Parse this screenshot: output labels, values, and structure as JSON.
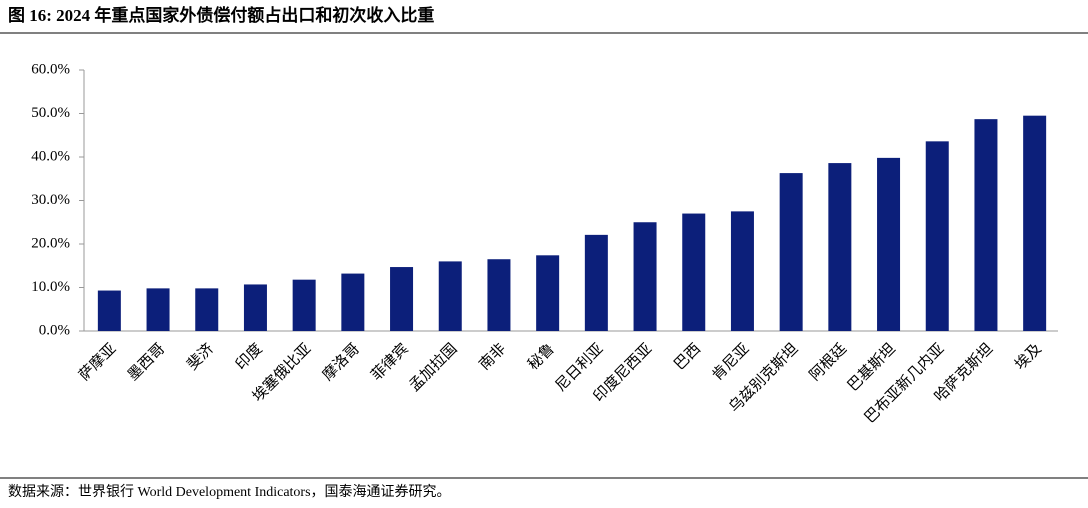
{
  "chart_data": {
    "type": "bar",
    "title": "图 16:  2024 年重点国家外债偿付额占出口和初次收入比重",
    "source": "数据来源：世界银行 World Development Indicators，国泰海通证券研究。",
    "categories": [
      "萨摩亚",
      "墨西哥",
      "斐济",
      "印度",
      "埃塞俄比亚",
      "摩洛哥",
      "菲律宾",
      "孟加拉国",
      "南非",
      "秘鲁",
      "尼日利亚",
      "印度尼西亚",
      "巴西",
      "肯尼亚",
      "乌兹别克斯坦",
      "阿根廷",
      "巴基斯坦",
      "巴布亚新几内亚",
      "哈萨克斯坦",
      "埃及"
    ],
    "values": [
      9.3,
      9.8,
      9.8,
      10.7,
      11.8,
      13.2,
      14.7,
      16.0,
      16.5,
      17.4,
      22.1,
      25.0,
      27.0,
      27.5,
      36.3,
      38.6,
      39.8,
      43.6,
      48.7,
      49.5
    ],
    "color": "#0c1f7a",
    "ylim": [
      0,
      60
    ],
    "yticks": [
      {
        "value": 0,
        "label": "0.0%"
      },
      {
        "value": 10,
        "label": "10.0%"
      },
      {
        "value": 20,
        "label": "20.0%"
      },
      {
        "value": 30,
        "label": "30.0%"
      },
      {
        "value": 40,
        "label": "40.0%"
      },
      {
        "value": 50,
        "label": "50.0%"
      },
      {
        "value": 60,
        "label": "60.0%"
      }
    ],
    "grid": false
  }
}
